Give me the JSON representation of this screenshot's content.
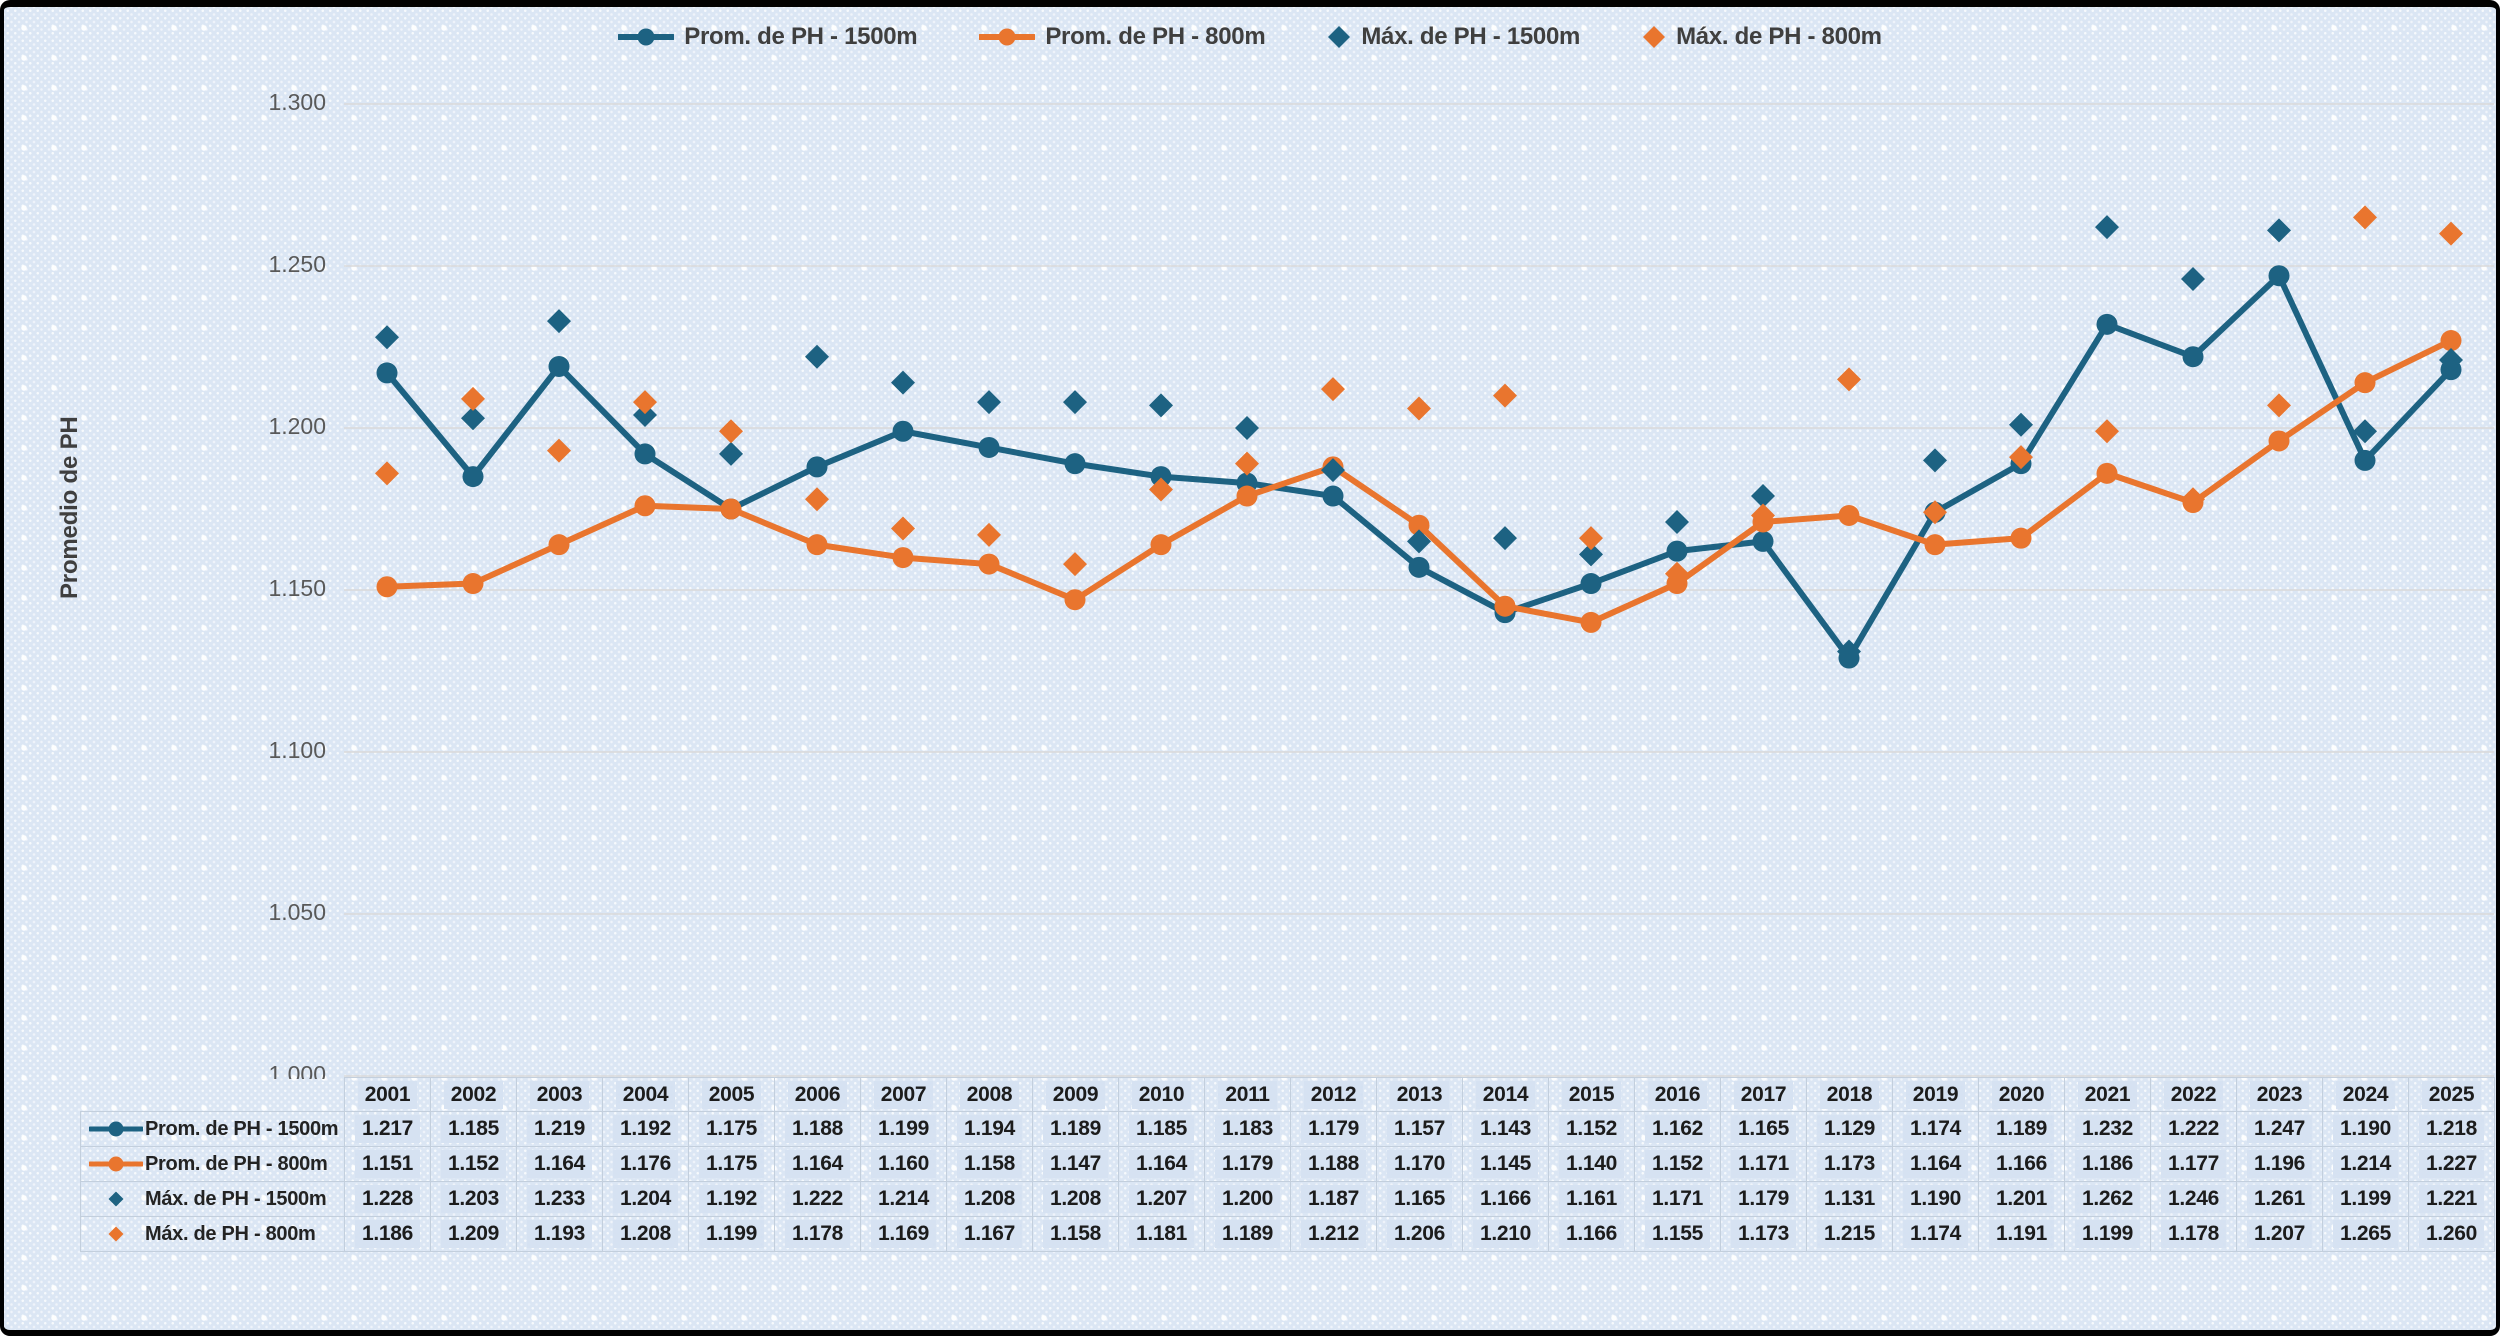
{
  "window": {
    "background_color": "#dbe6f4",
    "border_color": "#000000"
  },
  "colors": {
    "accent_blue": "#1d6282",
    "accent_orange": "#e9752e",
    "gridline": "#d9d9d9",
    "axis_text": "#595959",
    "legend_text": "#3f3f3f",
    "table_text": "#1c1c1c",
    "table_border": "#c3cfdd",
    "cell_patch": "#d6e2f2"
  },
  "chart_data": {
    "type": "line",
    "title": "",
    "xlabel": "",
    "ylabel": "Promedio de PH",
    "x": [
      2001,
      2002,
      2003,
      2004,
      2005,
      2006,
      2007,
      2008,
      2009,
      2010,
      2011,
      2012,
      2013,
      2014,
      2015,
      2016,
      2017,
      2018,
      2019,
      2020,
      2021,
      2022,
      2023,
      2024,
      2025
    ],
    "ylim": [
      1.0,
      1.3
    ],
    "ytick_labels": [
      "1.000",
      "1.050",
      "1.100",
      "1.150",
      "1.200",
      "1.250",
      "1.300"
    ],
    "grid": true,
    "legend_position": "top",
    "data_table_shown": true,
    "decimal_places": 3,
    "series": [
      {
        "name": "Prom. de PH - 1500m",
        "style": "line",
        "marker": "circle",
        "color": "#1d6282",
        "values": [
          1.217,
          1.185,
          1.219,
          1.192,
          1.175,
          1.188,
          1.199,
          1.194,
          1.189,
          1.185,
          1.183,
          1.179,
          1.157,
          1.143,
          1.152,
          1.162,
          1.165,
          1.129,
          1.174,
          1.189,
          1.232,
          1.222,
          1.247,
          1.19,
          1.218
        ]
      },
      {
        "name": "Prom. de PH - 800m",
        "style": "line",
        "marker": "circle",
        "color": "#e9752e",
        "values": [
          1.151,
          1.152,
          1.164,
          1.176,
          1.175,
          1.164,
          1.16,
          1.158,
          1.147,
          1.164,
          1.179,
          1.188,
          1.17,
          1.145,
          1.14,
          1.152,
          1.171,
          1.173,
          1.164,
          1.166,
          1.186,
          1.177,
          1.196,
          1.214,
          1.227
        ]
      },
      {
        "name": "Máx. de PH - 1500m",
        "style": "scatter",
        "marker": "diamond",
        "color": "#1d6282",
        "values": [
          1.228,
          1.203,
          1.233,
          1.204,
          1.192,
          1.222,
          1.214,
          1.208,
          1.208,
          1.207,
          1.2,
          1.187,
          1.165,
          1.166,
          1.161,
          1.171,
          1.179,
          1.131,
          1.19,
          1.201,
          1.262,
          1.246,
          1.261,
          1.199,
          1.221
        ]
      },
      {
        "name": "Máx. de PH - 800m",
        "style": "scatter",
        "marker": "diamond",
        "color": "#e9752e",
        "values": [
          1.186,
          1.209,
          1.193,
          1.208,
          1.199,
          1.178,
          1.169,
          1.167,
          1.158,
          1.181,
          1.189,
          1.212,
          1.206,
          1.21,
          1.166,
          1.155,
          1.173,
          1.215,
          1.174,
          1.191,
          1.199,
          1.178,
          1.207,
          1.265,
          1.26
        ]
      }
    ]
  }
}
